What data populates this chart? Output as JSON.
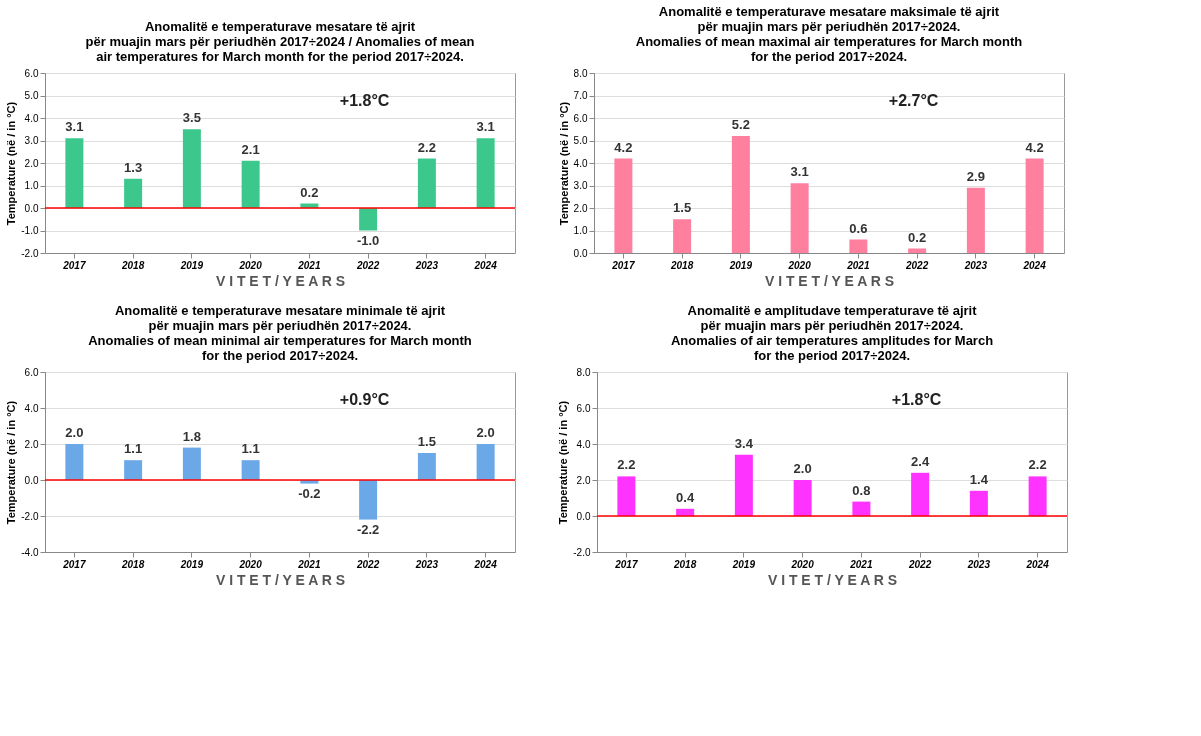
{
  "chart_data": [
    {
      "type": "bar",
      "title": "Anomalitë e temperaturave mesatare të ajrit\npër muajin mars për periudhën 2017÷2024 / Anomalies of mean\nair temperatures for March month for the period 2017÷2024.",
      "xlabel": "V I T E T   /   Y E A R S",
      "ylabel": "Temperature (në / in °C)",
      "categories": [
        "2017",
        "2018",
        "2019",
        "2020",
        "2021",
        "2022",
        "2023",
        "2024"
      ],
      "values": [
        3.1,
        1.3,
        3.5,
        2.1,
        0.2,
        -1.0,
        2.2,
        3.1
      ],
      "color": "#3cc88c",
      "value_labels": [
        "3.1",
        "1.3",
        "3.5",
        "2.1",
        "0.2",
        "-1.0",
        "2.2",
        "3.1"
      ],
      "ylim": [
        -2,
        6
      ],
      "yticks": [
        {
          "value": -2,
          "label": "-2.0"
        },
        {
          "value": -1,
          "label": "-1.0"
        },
        {
          "value": 0,
          "label": "0.0"
        },
        {
          "value": 1,
          "label": "1.0"
        },
        {
          "value": 2,
          "label": "2.0"
        },
        {
          "value": 3,
          "label": "3.0"
        },
        {
          "value": 4,
          "label": "4.0"
        },
        {
          "value": 5,
          "label": "5.0"
        },
        {
          "value": 6,
          "label": "6.0"
        }
      ],
      "grid": "y",
      "ref_lines": [
        {
          "axis": "y",
          "value": 0,
          "color": "#ff0000"
        }
      ],
      "annotations": [
        "+1.8°C"
      ]
    },
    {
      "type": "bar",
      "title": "Anomalitë e temperaturave mesatare maksimale të ajrit\npër muajin mars për periudhën 2017÷2024.\nAnomalies of mean maximal air temperatures for March month\nfor the period 2017÷2024.",
      "xlabel": "V I T E T   /   Y E A R S",
      "ylabel": "Temperature (në / in °C)",
      "categories": [
        "2017",
        "2018",
        "2019",
        "2020",
        "2021",
        "2022",
        "2023",
        "2024"
      ],
      "values": [
        4.2,
        1.5,
        5.2,
        3.1,
        0.6,
        0.2,
        2.9,
        4.2
      ],
      "color": "#ff7f9f",
      "value_labels": [
        "4.2",
        "1.5",
        "5.2",
        "3.1",
        "0.6",
        "0.2",
        "2.9",
        "4.2"
      ],
      "ylim": [
        0,
        8
      ],
      "yticks": [
        {
          "value": 0,
          "label": "0.0"
        },
        {
          "value": 1,
          "label": "1.0"
        },
        {
          "value": 2,
          "label": "2.0"
        },
        {
          "value": 3,
          "label": "3.0"
        },
        {
          "value": 4,
          "label": "4.0"
        },
        {
          "value": 5,
          "label": "5.0"
        },
        {
          "value": 6,
          "label": "6.0"
        },
        {
          "value": 7,
          "label": "7.0"
        },
        {
          "value": 8,
          "label": "8.0"
        }
      ],
      "grid": "y",
      "annotations": [
        "+2.7°C"
      ]
    },
    {
      "type": "bar",
      "title": "Anomalitë e temperaturave mesatare minimale të ajrit\npër muajin mars për periudhën 2017÷2024.\nAnomalies of mean minimal air temperatures for March month\nfor the period 2017÷2024.",
      "xlabel": "V I T E T   /   Y E A R S",
      "ylabel": "Temperature (në / in °C)",
      "categories": [
        "2017",
        "2018",
        "2019",
        "2020",
        "2021",
        "2022",
        "2023",
        "2024"
      ],
      "values": [
        2.0,
        1.1,
        1.8,
        1.1,
        -0.2,
        -2.2,
        1.5,
        2.0
      ],
      "color": "#6aa8e8",
      "value_labels": [
        "2.0",
        "1.1",
        "1.8",
        "1.1",
        "-0.2",
        "-2.2",
        "1.5",
        "2.0"
      ],
      "ylim": [
        -4,
        6
      ],
      "yticks": [
        {
          "value": -4,
          "label": "-4.0"
        },
        {
          "value": -2,
          "label": "-2.0"
        },
        {
          "value": 0,
          "label": "0.0"
        },
        {
          "value": 2,
          "label": "2.0"
        },
        {
          "value": 4,
          "label": "4.0"
        },
        {
          "value": 6,
          "label": "6.0"
        }
      ],
      "grid": "y",
      "ref_lines": [
        {
          "axis": "y",
          "value": 0,
          "color": "#ff0000"
        }
      ],
      "annotations": [
        "+0.9°C"
      ]
    },
    {
      "type": "bar",
      "title": "Anomalitë e amplitudave temperaturave të ajrit\npër muajin mars për periudhën 2017÷2024.\nAnomalies of air temperatures amplitudes for March\nfor the period 2017÷2024.",
      "xlabel": "V I T E T   /   Y E A R S",
      "ylabel": "Temperature (në / in °C)",
      "categories": [
        "2017",
        "2018",
        "2019",
        "2020",
        "2021",
        "2022",
        "2023",
        "2024"
      ],
      "values": [
        2.2,
        0.4,
        3.4,
        2.0,
        0.8,
        2.4,
        1.4,
        2.2
      ],
      "color": "#ff33ff",
      "value_labels": [
        "2.2",
        "0.4",
        "3.4",
        "2.0",
        "0.8",
        "2.4",
        "1.4",
        "2.2"
      ],
      "ylim": [
        -2,
        8
      ],
      "yticks": [
        {
          "value": -2,
          "label": "-2.0"
        },
        {
          "value": 0,
          "label": "0.0"
        },
        {
          "value": 2,
          "label": "2.0"
        },
        {
          "value": 4,
          "label": "4.0"
        },
        {
          "value": 6,
          "label": "6.0"
        },
        {
          "value": 8,
          "label": "8.0"
        }
      ],
      "grid": "y",
      "ref_lines": [
        {
          "axis": "y",
          "value": 0,
          "color": "#ff0000"
        }
      ],
      "annotations": [
        "+1.8°C"
      ]
    }
  ]
}
